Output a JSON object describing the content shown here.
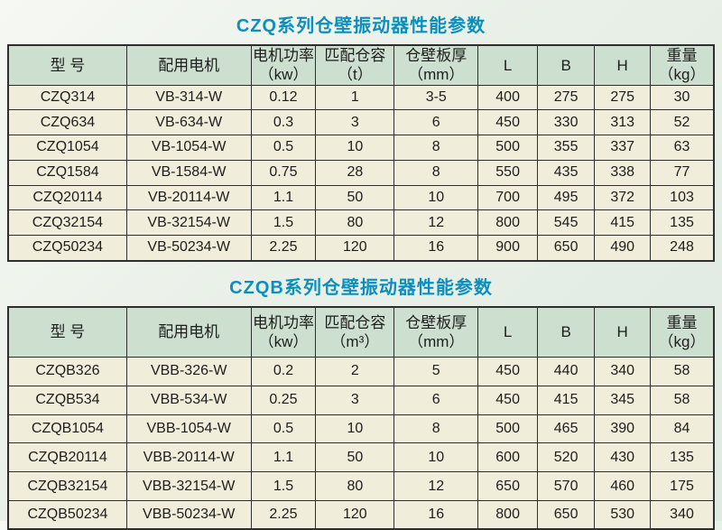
{
  "colors": {
    "title_text": "#0d8fbe",
    "header_cell_bg": "#cde0d0",
    "data_cell_bg": "#f0eeda",
    "border": "#2e2e2e",
    "page_bg": "#e9f0e8"
  },
  "tables": [
    {
      "title": "CZQ系列仓壁振动器性能参数",
      "headers": [
        "型 号",
        "配用电机",
        "电机功率\n（kw）",
        "匹配仓容\n（t）",
        "仓壁板厚\n（mm）",
        "L",
        "B",
        "H",
        "重量\n（kg）"
      ],
      "rows": [
        [
          "CZQ314",
          "VB-314-W",
          "0.12",
          "1",
          "3-5",
          "400",
          "275",
          "275",
          "30"
        ],
        [
          "CZQ634",
          "VB-634-W",
          "0.3",
          "3",
          "6",
          "450",
          "330",
          "313",
          "52"
        ],
        [
          "CZQ1054",
          "VB-1054-W",
          "0.5",
          "10",
          "8",
          "500",
          "355",
          "337",
          "63"
        ],
        [
          "CZQ1584",
          "VB-1584-W",
          "0.75",
          "28",
          "8",
          "550",
          "435",
          "338",
          "77"
        ],
        [
          "CZQ20114",
          "VB-20114-W",
          "1.1",
          "50",
          "10",
          "700",
          "495",
          "372",
          "103"
        ],
        [
          "CZQ32154",
          "VB-32154-W",
          "1.5",
          "80",
          "12",
          "800",
          "545",
          "415",
          "135"
        ],
        [
          "CZQ50234",
          "VB-50234-W",
          "2.25",
          "120",
          "16",
          "900",
          "650",
          "490",
          "248"
        ]
      ]
    },
    {
      "title": "CZQB系列仓壁振动器性能参数",
      "headers": [
        "型 号",
        "配用电机",
        "电机功率\n（kw）",
        "匹配仓容\n（m³）",
        "仓壁板厚\n（mm）",
        "L",
        "B",
        "H",
        "重量\n（kg）"
      ],
      "rows": [
        [
          "CZQB326",
          "VBB-326-W",
          "0.2",
          "2",
          "5",
          "450",
          "440",
          "340",
          "58"
        ],
        [
          "CZQB534",
          "VBB-534-W",
          "0.25",
          "3",
          "6",
          "450",
          "415",
          "345",
          "58"
        ],
        [
          "CZQB1054",
          "VBB-1054-W",
          "0.5",
          "10",
          "8",
          "500",
          "465",
          "390",
          "84"
        ],
        [
          "CZQB20114",
          "VBB-20114-W",
          "1.1",
          "50",
          "10",
          "600",
          "520",
          "430",
          "135"
        ],
        [
          "CZQB32154",
          "VBB-32154-W",
          "1.5",
          "80",
          "12",
          "650",
          "570",
          "460",
          "175"
        ],
        [
          "CZQB50234",
          "VBB-50234-W",
          "2.25",
          "120",
          "16",
          "800",
          "650",
          "530",
          "340"
        ]
      ]
    }
  ]
}
